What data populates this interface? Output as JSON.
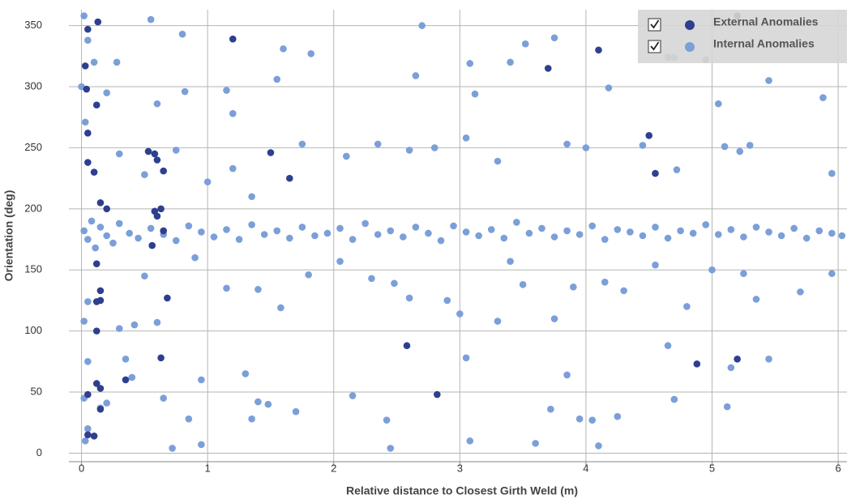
{
  "chart_data": {
    "type": "scatter",
    "x_label": "Relative distance to Closest Girth Weld (m)",
    "y_label": "Orientation (deg)",
    "xlim": [
      -0.1,
      6.07
    ],
    "ylim": [
      -7,
      363
    ],
    "xticks": [
      0,
      1,
      2,
      3,
      4,
      5,
      6
    ],
    "yticks": [
      0,
      50,
      100,
      150,
      200,
      250,
      300,
      350
    ],
    "grid": true,
    "legend": "top-right",
    "series": [
      {
        "name": "Internal Anomalies",
        "color": "#7b9fd8",
        "x": [
          0.02,
          0.05,
          0.08,
          0.11,
          0.15,
          0.2,
          0.25,
          0.3,
          0.38,
          0.45,
          0.55,
          0.65,
          0.75,
          0.85,
          0.95,
          1.05,
          1.15,
          1.25,
          1.35,
          1.45,
          1.55,
          1.65,
          1.75,
          1.85,
          1.95,
          2.05,
          2.15,
          2.25,
          2.35,
          2.45,
          2.55,
          2.65,
          2.75,
          2.85,
          2.95,
          3.05,
          3.15,
          3.25,
          3.35,
          3.45,
          3.55,
          3.65,
          3.75,
          3.85,
          3.95,
          4.05,
          4.15,
          4.25,
          4.35,
          4.45,
          4.55,
          4.65,
          4.75,
          4.85,
          4.95,
          5.05,
          5.15,
          5.25,
          5.35,
          5.45,
          5.55,
          5.65,
          5.75,
          5.85,
          5.95,
          6.03,
          0,
          0.02,
          0.03,
          0.05,
          0.1,
          0.2,
          0.28,
          0.55,
          0.6,
          0.8,
          0.82,
          1.15,
          1.2,
          1.6,
          1.82,
          1.55,
          2.65,
          2.7,
          3.08,
          3.12,
          3.4,
          3.52,
          3.75,
          4.18,
          4.65,
          4.7,
          4.95,
          5.05,
          5.45,
          5.88,
          0.3,
          0.5,
          0.75,
          1.0,
          1.2,
          1.35,
          1.75,
          2.1,
          2.35,
          2.6,
          2.8,
          3.05,
          3.3,
          3.85,
          4.0,
          4.45,
          4.72,
          5.1,
          5.22,
          5.3,
          5.95,
          0.5,
          0.9,
          1.15,
          1.4,
          1.58,
          1.8,
          2.05,
          2.3,
          2.48,
          2.6,
          2.9,
          3.0,
          3.3,
          3.4,
          3.5,
          3.75,
          3.9,
          4.15,
          4.3,
          4.55,
          4.8,
          5.0,
          5.25,
          5.35,
          5.7,
          5.95,
          0.05,
          0.35,
          0.4,
          0.65,
          0.95,
          1.3,
          1.4,
          1.48,
          1.7,
          2.15,
          2.42,
          2.45,
          3.05,
          3.08,
          3.6,
          3.72,
          3.85,
          3.95,
          4.05,
          4.1,
          4.25,
          4.65,
          4.7,
          5.15,
          5.12,
          5.45,
          0.03,
          0.05,
          0.72,
          0.95,
          0.85,
          1.35,
          0.15,
          0.2,
          0.02,
          0.3,
          0.42,
          0.02,
          0.6,
          0.05
        ],
        "values": [
          182,
          175,
          190,
          168,
          185,
          178,
          172,
          188,
          180,
          176,
          184,
          179,
          174,
          186,
          181,
          177,
          183,
          175,
          187,
          179,
          182,
          176,
          185,
          178,
          180,
          184,
          175,
          188,
          179,
          182,
          177,
          185,
          180,
          174,
          186,
          181,
          178,
          183,
          176,
          189,
          180,
          184,
          177,
          182,
          179,
          186,
          175,
          183,
          181,
          178,
          185,
          176,
          182,
          180,
          187,
          179,
          183,
          177,
          185,
          181,
          178,
          184,
          176,
          182,
          180,
          178,
          300,
          358,
          271,
          338,
          320,
          295,
          320,
          355,
          286,
          343,
          296,
          297,
          278,
          331,
          327,
          306,
          309,
          350,
          319,
          294,
          320,
          335,
          340,
          299,
          324,
          324,
          322,
          286,
          305,
          291,
          245,
          228,
          248,
          222,
          233,
          210,
          253,
          243,
          253,
          248,
          250,
          258,
          239,
          253,
          250,
          252,
          232,
          251,
          247,
          252,
          229,
          145,
          160,
          135,
          134,
          119,
          146,
          157,
          143,
          139,
          127,
          125,
          114,
          108,
          157,
          138,
          110,
          136,
          140,
          133,
          154,
          120,
          150,
          147,
          126,
          132,
          147,
          75,
          77,
          62,
          45,
          60,
          65,
          42,
          40,
          34,
          47,
          27,
          4,
          78,
          10,
          8,
          36,
          64,
          28,
          27,
          6,
          30,
          88,
          44,
          70,
          38,
          77,
          10,
          20,
          4,
          7,
          28,
          28,
          37,
          41,
          45,
          102,
          105,
          108,
          107,
          124
        ]
      },
      {
        "name": "External Anomalies",
        "color": "#2e3f8f",
        "x": [
          0.05,
          0.13,
          0.03,
          0.04,
          0.12,
          0.05,
          0.05,
          0.1,
          0.15,
          0.2,
          0.53,
          0.58,
          0.6,
          0.65,
          0.58,
          0.6,
          0.63,
          0.56,
          0.65,
          0.68,
          0.12,
          0.15,
          0.12,
          0.15,
          0.12,
          0.05,
          0.12,
          0.15,
          0.1,
          0.05,
          0.15,
          0.35,
          0.63,
          1.2,
          1.5,
          1.65,
          2.58,
          2.82,
          3.7,
          4.1,
          4.5,
          4.55,
          4.88,
          5.2,
          5.2
        ],
        "values": [
          347,
          353,
          317,
          298,
          285,
          262,
          238,
          230,
          205,
          200,
          247,
          245,
          240,
          231,
          198,
          194,
          200,
          170,
          182,
          127,
          155,
          133,
          124,
          125,
          100,
          48,
          57,
          53,
          14,
          15,
          36,
          60,
          78,
          339,
          246,
          225,
          88,
          48,
          315,
          330,
          260,
          229,
          73,
          77,
          358
        ]
      }
    ]
  }
}
